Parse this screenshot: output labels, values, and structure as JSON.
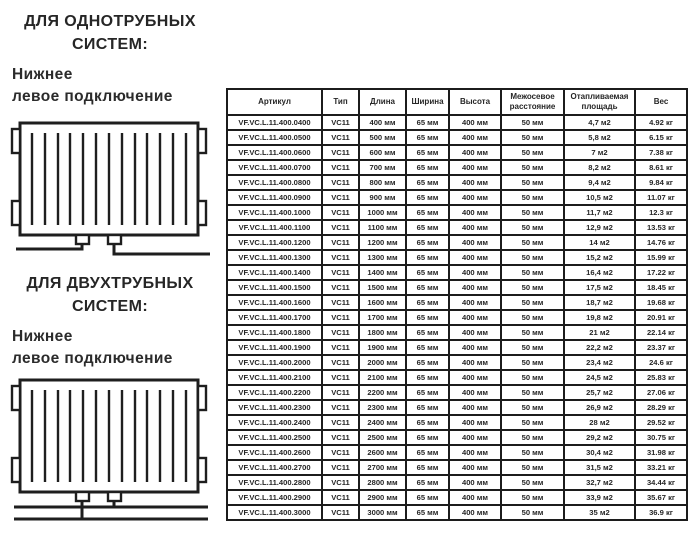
{
  "sections": [
    {
      "title_line1": "ДЛЯ ОДНОТРУБНЫХ",
      "title_line2": "СИСТЕМ:",
      "subtitle_line1": "Нижнее",
      "subtitle_line2": "левое подключение",
      "diagram": "one-pipe-bottom-left-connection-radiator"
    },
    {
      "title_line1": "ДЛЯ ДВУХТРУБНЫХ",
      "title_line2": "СИСТЕМ:",
      "subtitle_line1": "Нижнее",
      "subtitle_line2": "левое подключение",
      "diagram": "two-pipe-bottom-left-connection-radiator"
    }
  ],
  "table": {
    "headers": [
      "Артикул",
      "Тип",
      "Длина",
      "Ширина",
      "Высота",
      "Межосевое расстояние",
      "Отапливаемая площадь",
      "Вес"
    ],
    "col_keys": [
      "article",
      "type",
      "length",
      "width",
      "height",
      "axle-distance",
      "heated-area",
      "weight"
    ],
    "rows": [
      [
        "VF.VC.L.11.400.0400",
        "VC11",
        "400 мм",
        "65 мм",
        "400 мм",
        "50 мм",
        "4,7 м2",
        "4.92 кг"
      ],
      [
        "VF.VC.L.11.400.0500",
        "VC11",
        "500 мм",
        "65 мм",
        "400 мм",
        "50 мм",
        "5,8 м2",
        "6.15 кг"
      ],
      [
        "VF.VC.L.11.400.0600",
        "VC11",
        "600 мм",
        "65 мм",
        "400 мм",
        "50 мм",
        "7 м2",
        "7.38 кг"
      ],
      [
        "VF.VC.L.11.400.0700",
        "VC11",
        "700 мм",
        "65 мм",
        "400 мм",
        "50 мм",
        "8,2 м2",
        "8.61 кг"
      ],
      [
        "VF.VC.L.11.400.0800",
        "VC11",
        "800 мм",
        "65 мм",
        "400 мм",
        "50 мм",
        "9,4 м2",
        "9.84 кг"
      ],
      [
        "VF.VC.L.11.400.0900",
        "VC11",
        "900 мм",
        "65 мм",
        "400 мм",
        "50 мм",
        "10,5 м2",
        "11.07 кг"
      ],
      [
        "VF.VC.L.11.400.1000",
        "VC11",
        "1000 мм",
        "65 мм",
        "400 мм",
        "50 мм",
        "11,7 м2",
        "12.3 кг"
      ],
      [
        "VF.VC.L.11.400.1100",
        "VC11",
        "1100 мм",
        "65 мм",
        "400 мм",
        "50 мм",
        "12,9 м2",
        "13.53 кг"
      ],
      [
        "VF.VC.L.11.400.1200",
        "VC11",
        "1200 мм",
        "65 мм",
        "400 мм",
        "50 мм",
        "14 м2",
        "14.76 кг"
      ],
      [
        "VF.VC.L.11.400.1300",
        "VC11",
        "1300 мм",
        "65 мм",
        "400 мм",
        "50 мм",
        "15,2 м2",
        "15.99 кг"
      ],
      [
        "VF.VC.L.11.400.1400",
        "VC11",
        "1400 мм",
        "65 мм",
        "400 мм",
        "50 мм",
        "16,4 м2",
        "17.22 кг"
      ],
      [
        "VF.VC.L.11.400.1500",
        "VC11",
        "1500 мм",
        "65 мм",
        "400 мм",
        "50 мм",
        "17,5 м2",
        "18.45 кг"
      ],
      [
        "VF.VC.L.11.400.1600",
        "VC11",
        "1600 мм",
        "65 мм",
        "400 мм",
        "50 мм",
        "18,7 м2",
        "19.68 кг"
      ],
      [
        "VF.VC.L.11.400.1700",
        "VC11",
        "1700 мм",
        "65 мм",
        "400 мм",
        "50 мм",
        "19,8 м2",
        "20.91 кг"
      ],
      [
        "VF.VC.L.11.400.1800",
        "VC11",
        "1800 мм",
        "65 мм",
        "400 мм",
        "50 мм",
        "21 м2",
        "22.14 кг"
      ],
      [
        "VF.VC.L.11.400.1900",
        "VC11",
        "1900 мм",
        "65 мм",
        "400 мм",
        "50 мм",
        "22,2 м2",
        "23.37 кг"
      ],
      [
        "VF.VC.L.11.400.2000",
        "VC11",
        "2000 мм",
        "65 мм",
        "400 мм",
        "50 мм",
        "23,4 м2",
        "24.6 кг"
      ],
      [
        "VF.VC.L.11.400.2100",
        "VC11",
        "2100 мм",
        "65 мм",
        "400 мм",
        "50 мм",
        "24,5 м2",
        "25.83 кг"
      ],
      [
        "VF.VC.L.11.400.2200",
        "VC11",
        "2200 мм",
        "65 мм",
        "400 мм",
        "50 мм",
        "25,7 м2",
        "27.06 кг"
      ],
      [
        "VF.VC.L.11.400.2300",
        "VC11",
        "2300 мм",
        "65 мм",
        "400 мм",
        "50 мм",
        "26,9 м2",
        "28.29 кг"
      ],
      [
        "VF.VC.L.11.400.2400",
        "VC11",
        "2400 мм",
        "65 мм",
        "400 мм",
        "50 мм",
        "28 м2",
        "29.52 кг"
      ],
      [
        "VF.VC.L.11.400.2500",
        "VC11",
        "2500 мм",
        "65 мм",
        "400 мм",
        "50 мм",
        "29,2 м2",
        "30.75 кг"
      ],
      [
        "VF.VC.L.11.400.2600",
        "VC11",
        "2600 мм",
        "65 мм",
        "400 мм",
        "50 мм",
        "30,4 м2",
        "31.98 кг"
      ],
      [
        "VF.VC.L.11.400.2700",
        "VC11",
        "2700 мм",
        "65 мм",
        "400 мм",
        "50 мм",
        "31,5 м2",
        "33.21 кг"
      ],
      [
        "VF.VC.L.11.400.2800",
        "VC11",
        "2800 мм",
        "65 мм",
        "400 мм",
        "50 мм",
        "32,7 м2",
        "34.44 кг"
      ],
      [
        "VF.VC.L.11.400.2900",
        "VC11",
        "2900 мм",
        "65 мм",
        "400 мм",
        "50 мм",
        "33,9 м2",
        "35.67 кг"
      ],
      [
        "VF.VC.L.11.400.3000",
        "VC11",
        "3000 мм",
        "65 мм",
        "400 мм",
        "50 мм",
        "35 м2",
        "36.9 кг"
      ]
    ]
  },
  "colors": {
    "text": "#262626",
    "border": "#1c1c1c",
    "background": "#ffffff"
  }
}
